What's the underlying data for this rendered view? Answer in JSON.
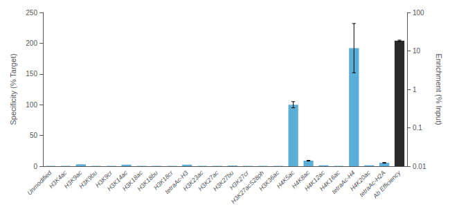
{
  "chart_data": {
    "type": "bar",
    "categories": [
      "Unmodified",
      "H3K4ac",
      "H3K9ac",
      "H3K9bu",
      "H3K9cr",
      "H3K14ac",
      "H3K18ac",
      "H3K18bu",
      "H3K18cr",
      "tetraAc-H3",
      "H3K23ac",
      "H3K27ac",
      "H3K27bu",
      "H3K27cr",
      "H3K27acS28ph",
      "H3K36ac",
      "H4K5ac",
      "H4K8ac",
      "H4K12ac",
      "H4K16ac",
      "tetraAc-H4",
      "H4K20ac",
      "tetraAc-H2A",
      "Ab Efficiency"
    ],
    "values": [
      0.5,
      0.5,
      3.0,
      0.5,
      0.5,
      2.5,
      0.5,
      0.5,
      0.5,
      2.5,
      0.5,
      0.5,
      1.0,
      0.5,
      0.5,
      0.5,
      100.0,
      9.0,
      1.5,
      0.5,
      192.0,
      1.5,
      5.5,
      204.0
    ],
    "errors": [
      0.0,
      0.0,
      0.0,
      0.0,
      0.0,
      0.0,
      0.0,
      0.0,
      0.0,
      0.0,
      0.0,
      0.0,
      0.0,
      0.0,
      0.0,
      0.0,
      5.0,
      0.5,
      0.0,
      0.0,
      40.0,
      0.0,
      0.5,
      1.0
    ],
    "colors": [
      "#5BAFD6",
      "#5BAFD6",
      "#5BAFD6",
      "#5BAFD6",
      "#5BAFD6",
      "#5BAFD6",
      "#5BAFD6",
      "#5BAFD6",
      "#5BAFD6",
      "#5BAFD6",
      "#5BAFD6",
      "#5BAFD6",
      "#5BAFD6",
      "#5BAFD6",
      "#5BAFD6",
      "#5BAFD6",
      "#5BAFD6",
      "#5BAFD6",
      "#5BAFD6",
      "#5BAFD6",
      "#5BAFD6",
      "#5BAFD6",
      "#5BAFD6",
      "#2B2B2B"
    ],
    "ylabel": "Specificity (% Target)",
    "y2label": "Enrichment (% Input)",
    "ylim": [
      0,
      250
    ],
    "yticks": [
      0,
      50,
      100,
      150,
      200,
      250
    ],
    "y2lim": [
      0.01,
      100
    ],
    "y2ticks": [
      0.01,
      0.1,
      1,
      10,
      100
    ],
    "log": "y2",
    "grid": false
  }
}
